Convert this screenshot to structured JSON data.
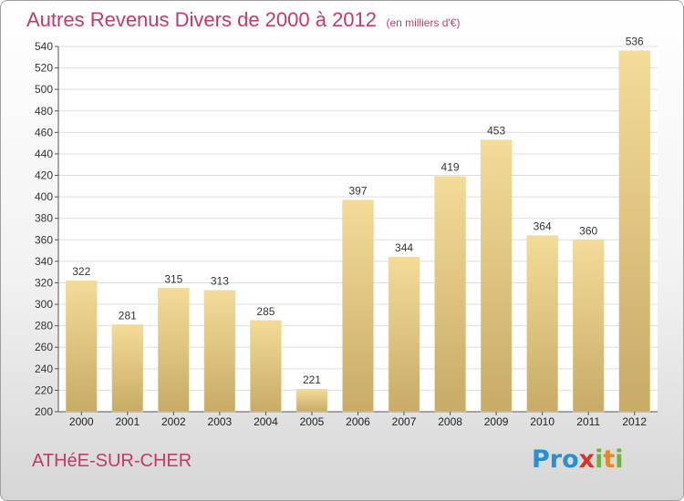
{
  "header": {
    "title": "Autres Revenus Divers de 2000 à 2012",
    "subtitle": "(en milliers d'€)"
  },
  "footer": {
    "commune": "ATHéE-SUR-CHER",
    "brand": "Proxiti"
  },
  "colors": {
    "title": "#c23a6b",
    "bar_light": "#f3dc98",
    "bar_dark": "#c7ab66",
    "grid": "#dddddd"
  },
  "chart_data": {
    "type": "bar",
    "title": "Autres Revenus Divers de 2000 à 2012",
    "subtitle": "(en milliers d'€)",
    "xlabel": "",
    "ylabel": "",
    "categories": [
      "2000",
      "2001",
      "2002",
      "2003",
      "2004",
      "2005",
      "2006",
      "2007",
      "2008",
      "2009",
      "2010",
      "2011",
      "2012"
    ],
    "values": [
      322,
      281,
      315,
      313,
      285,
      221,
      397,
      344,
      419,
      453,
      364,
      360,
      536
    ],
    "ylim": [
      200,
      540
    ],
    "yticks": [
      200,
      220,
      240,
      260,
      280,
      300,
      320,
      340,
      360,
      380,
      400,
      420,
      440,
      460,
      480,
      500,
      520,
      540
    ],
    "grid": true,
    "legend": "none"
  }
}
